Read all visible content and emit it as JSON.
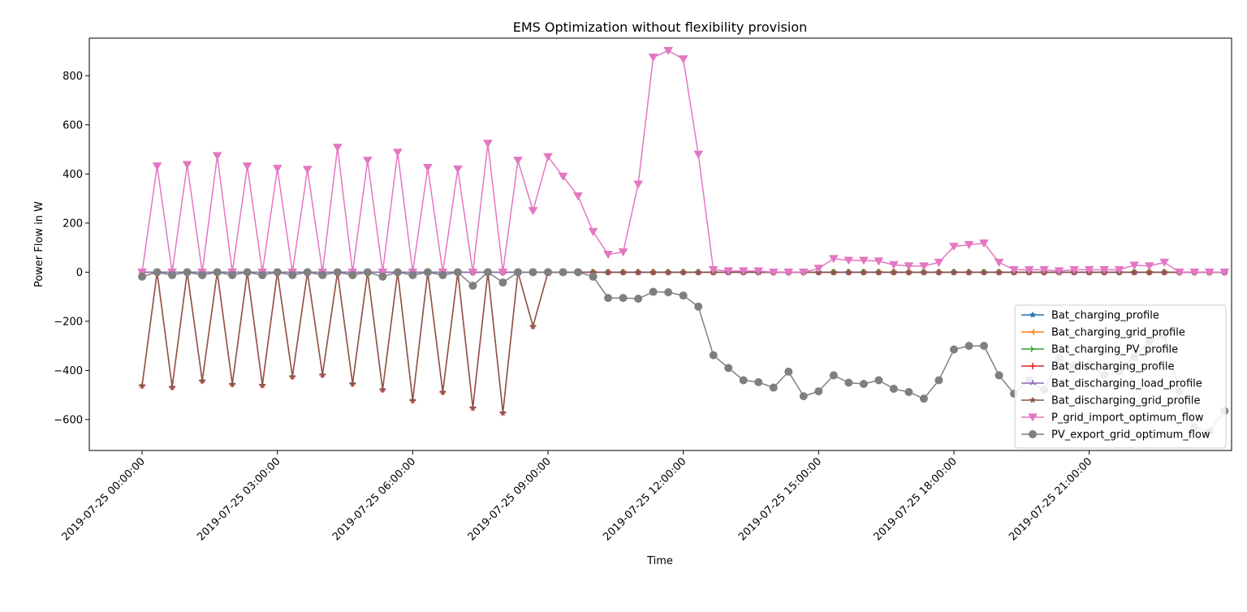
{
  "chart_data": {
    "type": "line",
    "title": "EMS Optimization without flexibility provision",
    "xlabel": "Time",
    "ylabel": "Power Flow in W",
    "x_start": "2019-07-25 00:00:00",
    "x_step_minutes": 20,
    "xlim": [
      "2019-07-24 22:49:46",
      "2019-07-26 00:09:23"
    ],
    "ylim": [
      -726,
      953
    ],
    "xticks": [
      "2019-07-25 00:00:00",
      "2019-07-25 03:00:00",
      "2019-07-25 06:00:00",
      "2019-07-25 09:00:00",
      "2019-07-25 12:00:00",
      "2019-07-25 15:00:00",
      "2019-07-25 18:00:00",
      "2019-07-25 21:00:00"
    ],
    "yticks": [
      -600,
      -400,
      -200,
      0,
      200,
      400,
      600,
      800
    ],
    "grid": false,
    "legend_position": "lower-right",
    "series": [
      {
        "name": "Bat_charging_profile",
        "color": "#1f77b4",
        "marker": "star",
        "values": [
          0,
          0,
          0,
          0,
          0,
          0,
          0,
          0,
          0,
          0,
          0,
          0,
          0,
          0,
          0,
          0,
          0,
          0,
          0,
          0,
          0,
          0,
          0,
          0,
          0,
          0,
          0,
          0,
          0,
          0,
          0,
          0,
          0,
          0,
          0,
          0,
          0,
          0,
          0,
          0,
          0,
          0,
          0,
          0,
          0,
          0,
          0,
          0,
          0,
          0,
          0,
          0,
          0,
          0,
          0,
          0,
          0,
          0,
          0,
          0,
          0,
          0,
          0,
          0,
          0,
          0,
          0,
          0,
          0,
          0,
          0,
          0,
          0
        ]
      },
      {
        "name": "Bat_charging_grid_profile",
        "color": "#ff7f0e",
        "marker": "tri_left",
        "values": [
          0,
          0,
          0,
          0,
          0,
          0,
          0,
          0,
          0,
          0,
          0,
          0,
          0,
          0,
          0,
          0,
          0,
          0,
          0,
          0,
          0,
          0,
          0,
          0,
          0,
          0,
          0,
          0,
          0,
          0,
          0,
          0,
          0,
          0,
          0,
          0,
          0,
          0,
          0,
          0,
          0,
          0,
          0,
          0,
          0,
          0,
          0,
          0,
          0,
          0,
          0,
          0,
          0,
          0,
          0,
          0,
          0,
          0,
          0,
          0,
          0,
          0,
          0,
          0,
          0,
          0,
          0,
          0,
          0,
          0,
          0,
          0,
          0
        ]
      },
      {
        "name": "Bat_charging_PV_profile",
        "color": "#2ca02c",
        "marker": "tri_right",
        "values": [
          0,
          0,
          0,
          0,
          0,
          0,
          0,
          0,
          0,
          0,
          0,
          0,
          0,
          0,
          0,
          0,
          0,
          0,
          0,
          0,
          0,
          0,
          0,
          0,
          0,
          0,
          0,
          0,
          0,
          0,
          0,
          0,
          0,
          0,
          0,
          0,
          0,
          0,
          0,
          0,
          0,
          0,
          0,
          0,
          0,
          0,
          0,
          0,
          0,
          0,
          0,
          0,
          0,
          0,
          0,
          0,
          0,
          0,
          0,
          0,
          0,
          0,
          0,
          0,
          0,
          0,
          0,
          0,
          0,
          0,
          0,
          0,
          0
        ]
      },
      {
        "name": "Bat_discharging_profile",
        "color": "#d62728",
        "marker": "plus",
        "values": [
          -462,
          0,
          -468,
          0,
          -442,
          0,
          -456,
          0,
          -460,
          0,
          -425,
          0,
          -418,
          0,
          -454,
          0,
          -478,
          0,
          -522,
          0,
          -488,
          0,
          -552,
          0,
          -572,
          0,
          -220,
          0,
          0,
          0,
          0,
          0,
          0,
          0,
          0,
          0,
          0,
          0,
          0,
          0,
          0,
          0,
          0,
          0,
          0,
          0,
          0,
          0,
          0,
          0,
          0,
          0,
          0,
          0,
          0,
          0,
          0,
          0,
          0,
          0,
          0,
          0,
          0,
          0,
          0,
          0,
          0,
          0,
          0,
          0,
          0,
          0,
          0
        ]
      },
      {
        "name": "Bat_discharging_load_profile",
        "color": "#9467bd",
        "marker": "tri_up",
        "values": [
          0,
          0,
          0,
          0,
          0,
          0,
          0,
          0,
          0,
          0,
          0,
          0,
          0,
          0,
          0,
          0,
          0,
          0,
          0,
          0,
          0,
          0,
          0,
          0,
          0,
          0,
          0,
          0,
          0,
          0,
          0,
          0,
          0,
          0,
          0,
          0,
          0,
          0,
          0,
          0,
          0,
          0,
          0,
          0,
          0,
          0,
          0,
          0,
          0,
          0,
          0,
          0,
          0,
          0,
          0,
          0,
          0,
          0,
          0,
          0,
          0,
          0,
          0,
          0,
          0,
          0,
          0,
          0,
          0,
          0,
          0,
          0,
          0
        ]
      },
      {
        "name": "Bat_discharging_grid_profile",
        "color": "#8c564b",
        "marker": "star",
        "values": [
          -462,
          0,
          -468,
          0,
          -442,
          0,
          -456,
          0,
          -460,
          0,
          -425,
          0,
          -418,
          0,
          -454,
          0,
          -478,
          0,
          -522,
          0,
          -488,
          0,
          -552,
          0,
          -572,
          0,
          -220,
          0,
          0,
          0,
          0,
          0,
          0,
          0,
          0,
          0,
          0,
          0,
          0,
          0,
          0,
          0,
          0,
          0,
          0,
          0,
          0,
          0,
          0,
          0,
          0,
          0,
          0,
          0,
          0,
          0,
          0,
          0,
          0,
          0,
          0,
          0,
          0,
          0,
          0,
          0,
          0,
          0,
          0,
          0,
          0,
          0,
          0
        ]
      },
      {
        "name": "P_grid_import_optimum_flow",
        "color": "#e377c2",
        "marker": "triangle_down",
        "values": [
          0,
          432,
          0,
          438,
          0,
          474,
          0,
          432,
          0,
          422,
          0,
          418,
          0,
          508,
          0,
          455,
          0,
          488,
          0,
          426,
          0,
          420,
          0,
          524,
          0,
          455,
          250,
          470,
          390,
          310,
          165,
          72,
          82,
          358,
          875,
          902,
          868,
          480,
          10,
          5,
          5,
          5,
          0,
          0,
          0,
          15,
          55,
          48,
          48,
          45,
          30,
          25,
          25,
          40,
          105,
          112,
          118,
          40,
          10,
          10,
          10,
          5,
          10,
          10,
          10,
          10,
          28,
          25,
          40,
          0,
          0,
          0,
          0
        ]
      },
      {
        "name": "PV_export_grid_optimum_flow",
        "color": "#7f7f7f",
        "marker": "circle",
        "values": [
          -18,
          0,
          -12,
          0,
          -12,
          0,
          -12,
          0,
          -12,
          0,
          -12,
          0,
          -12,
          0,
          -12,
          0,
          -18,
          0,
          -12,
          0,
          -12,
          0,
          -55,
          0,
          -42,
          0,
          0,
          0,
          0,
          0,
          -18,
          -105,
          -105,
          -108,
          -80,
          -82,
          -95,
          -140,
          -338,
          -390,
          -440,
          -448,
          -470,
          -405,
          -505,
          -485,
          -420,
          -450,
          -455,
          -440,
          -475,
          -488,
          -515,
          -440,
          -315,
          -300,
          -300,
          -420,
          -495,
          -440,
          -478,
          -350,
          -380,
          -378,
          -420,
          -405,
          -345,
          -282,
          -258,
          -485,
          -632,
          -648,
          -565
        ]
      }
    ]
  }
}
